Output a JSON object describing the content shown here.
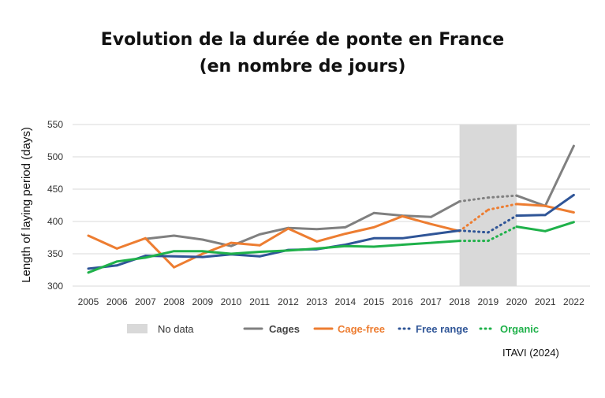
{
  "title_line1": "Evolution de la durée de ponte en France",
  "title_line2": "(en nombre de jours)",
  "source": "ITAVI (2024)",
  "chart_data": {
    "type": "line",
    "title": "Evolution de la durée de ponte en France (en nombre de jours)",
    "xlabel": "",
    "ylabel": "Length of laying period (days)",
    "ylim": [
      300,
      550
    ],
    "yticks": [
      300,
      350,
      400,
      450,
      500,
      550
    ],
    "grid": true,
    "legend_position": "bottom",
    "categories": [
      "2005",
      "2006",
      "2007",
      "2008",
      "2009",
      "2010",
      "2011",
      "2012",
      "2013",
      "2014",
      "2015",
      "2016",
      "2017",
      "2018",
      "2019",
      "2020",
      "2021",
      "2022"
    ],
    "no_data": {
      "label": "No data",
      "from": "2018",
      "to": "2020",
      "color": "#d9d9d9"
    },
    "series": [
      {
        "name": "Cages",
        "color": "#808080",
        "values": [
          null,
          null,
          373,
          378,
          372,
          362,
          380,
          390,
          388,
          391,
          413,
          409,
          407,
          431,
          437,
          440,
          424,
          517
        ]
      },
      {
        "name": "Cage-free",
        "color": "#ed7d31",
        "values": [
          378,
          358,
          374,
          329,
          350,
          367,
          363,
          389,
          369,
          381,
          391,
          408,
          396,
          385,
          418,
          427,
          424,
          414
        ]
      },
      {
        "name": "Free range",
        "color": "#2f5597",
        "values": [
          327,
          332,
          347,
          346,
          345,
          349,
          346,
          356,
          357,
          364,
          374,
          374,
          380,
          386,
          383,
          409,
          410,
          441
        ]
      },
      {
        "name": "Organic",
        "color": "#1fb14a",
        "values": [
          321,
          338,
          344,
          354,
          354,
          350,
          353,
          355,
          358,
          362,
          361,
          364,
          367,
          370,
          370,
          392,
          385,
          399
        ]
      }
    ]
  }
}
